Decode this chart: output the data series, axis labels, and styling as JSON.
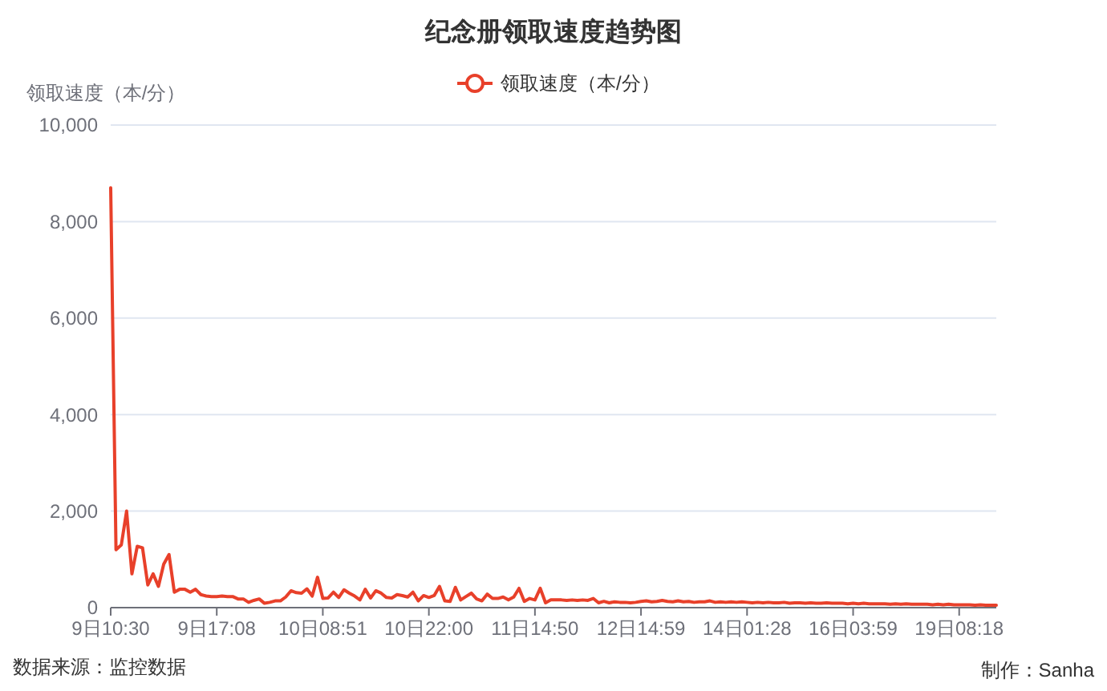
{
  "chart_data": {
    "type": "line",
    "title": "纪念册领取速度趋势图",
    "ylabel": "领取速度（本/分）",
    "categories": [
      "9日10:30",
      null,
      null,
      null,
      null,
      null,
      null,
      null,
      null,
      null,
      null,
      null,
      null,
      null,
      null,
      null,
      null,
      null,
      null,
      null,
      "9日17:08",
      null,
      null,
      null,
      null,
      null,
      null,
      null,
      null,
      null,
      null,
      null,
      null,
      null,
      null,
      null,
      null,
      null,
      null,
      null,
      "10日08:51",
      null,
      null,
      null,
      null,
      null,
      null,
      null,
      null,
      null,
      null,
      null,
      null,
      null,
      null,
      null,
      null,
      null,
      null,
      null,
      "10日22:00",
      null,
      null,
      null,
      null,
      null,
      null,
      null,
      null,
      null,
      null,
      null,
      null,
      null,
      null,
      null,
      null,
      null,
      null,
      null,
      "11日14:50",
      null,
      null,
      null,
      null,
      null,
      null,
      null,
      null,
      null,
      null,
      null,
      null,
      null,
      null,
      null,
      null,
      null,
      null,
      null,
      "12日14:59",
      null,
      null,
      null,
      null,
      null,
      null,
      null,
      null,
      null,
      null,
      null,
      null,
      null,
      null,
      null,
      null,
      null,
      null,
      null,
      "14日01:28",
      null,
      null,
      null,
      null,
      null,
      null,
      null,
      null,
      null,
      null,
      null,
      null,
      null,
      null,
      null,
      null,
      null,
      null,
      null,
      "16日03:59",
      null,
      null,
      null,
      null,
      null,
      null,
      null,
      null,
      null,
      null,
      null,
      null,
      null,
      null,
      null,
      null,
      null,
      null,
      null,
      "19日08:18",
      null,
      null,
      null,
      null,
      null,
      null,
      null
    ],
    "series": [
      {
        "name": "领取速度（本/分）",
        "color": "#e8402a",
        "values": [
          8700,
          1200,
          1300,
          2000,
          700,
          1270,
          1240,
          470,
          700,
          440,
          900,
          1100,
          320,
          380,
          380,
          320,
          380,
          270,
          240,
          230,
          230,
          240,
          230,
          230,
          180,
          180,
          110,
          150,
          180,
          90,
          110,
          140,
          140,
          220,
          350,
          310,
          300,
          390,
          240,
          630,
          190,
          200,
          320,
          210,
          370,
          300,
          240,
          160,
          380,
          200,
          350,
          300,
          210,
          200,
          270,
          250,
          220,
          320,
          140,
          250,
          210,
          250,
          440,
          140,
          130,
          420,
          160,
          230,
          300,
          180,
          140,
          280,
          190,
          190,
          220,
          160,
          220,
          400,
          130,
          190,
          160,
          400,
          100,
          160,
          160,
          160,
          150,
          160,
          150,
          160,
          150,
          190,
          100,
          130,
          100,
          120,
          110,
          110,
          100,
          110,
          130,
          140,
          120,
          130,
          150,
          130,
          120,
          140,
          120,
          130,
          110,
          120,
          120,
          140,
          110,
          120,
          110,
          120,
          110,
          120,
          110,
          100,
          110,
          100,
          110,
          100,
          100,
          110,
          90,
          100,
          100,
          90,
          100,
          90,
          90,
          100,
          90,
          90,
          90,
          80,
          90,
          80,
          90,
          80,
          80,
          80,
          80,
          70,
          80,
          70,
          80,
          70,
          70,
          70,
          70,
          60,
          70,
          60,
          70,
          60,
          60,
          60,
          60,
          50,
          60,
          50,
          50,
          50
        ]
      }
    ],
    "ylim": [
      0,
      10000
    ],
    "yticks": [
      0,
      {
        "value": 2000,
        "label": "2,000"
      },
      {
        "value": 4000,
        "label": "4,000"
      },
      {
        "value": 6000,
        "label": "6,000"
      },
      {
        "value": 8000,
        "label": "8,000"
      },
      {
        "value": 10000,
        "label": "10,000"
      }
    ],
    "grid": "y",
    "legend": "top",
    "annotations": [
      "数据来源：监控数据",
      "制作：Sanha"
    ]
  }
}
